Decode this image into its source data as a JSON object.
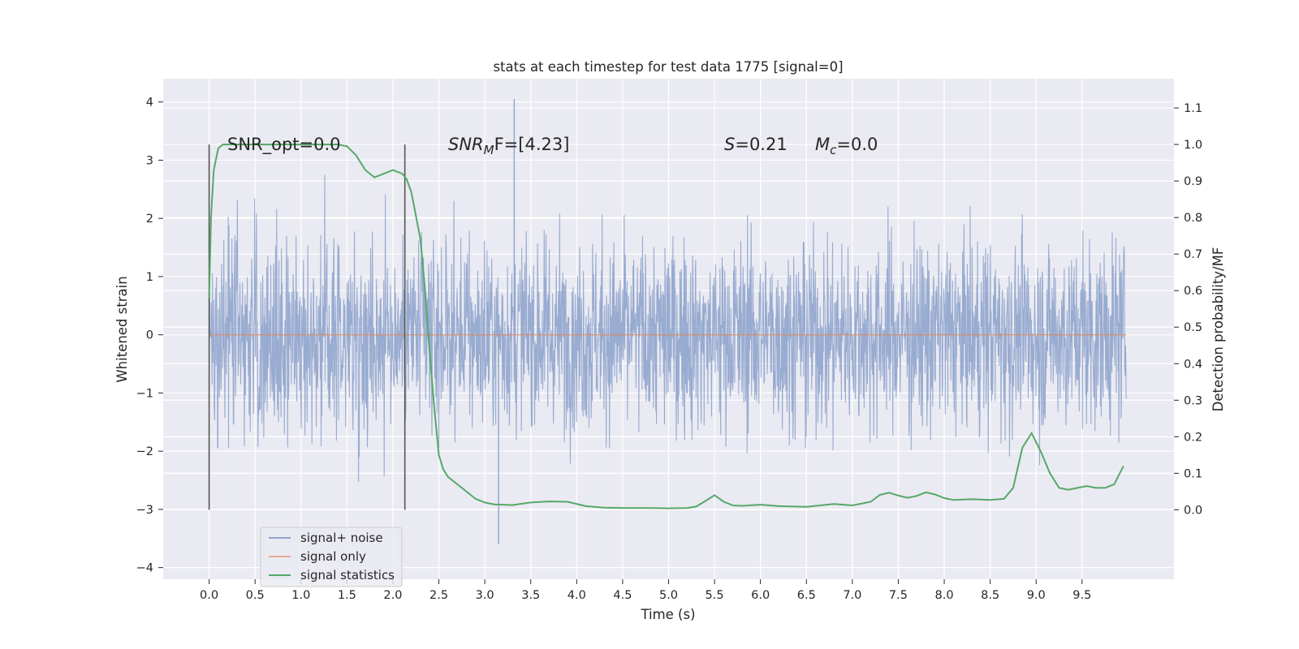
{
  "chart_data": {
    "type": "line",
    "title": "stats at each timestep for test data 1775 [signal=0]",
    "xlabel": "Time (s)",
    "ylabel": "Whitened strain",
    "y2label": "Detection probability/MF",
    "xlim": [
      -0.5,
      10.5
    ],
    "ylim": [
      -4.2,
      4.4
    ],
    "y2lim": [
      -0.19,
      1.18
    ],
    "x_ticks": [
      "0.0",
      "0.5",
      "1.0",
      "1.5",
      "2.0",
      "2.5",
      "3.0",
      "3.5",
      "4.0",
      "4.5",
      "5.0",
      "5.5",
      "6.0",
      "6.5",
      "7.0",
      "7.5",
      "8.0",
      "8.5",
      "9.0",
      "9.5"
    ],
    "x_tick_values": [
      0.0,
      0.5,
      1.0,
      1.5,
      2.0,
      2.5,
      3.0,
      3.5,
      4.0,
      4.5,
      5.0,
      5.5,
      6.0,
      6.5,
      7.0,
      7.5,
      8.0,
      8.5,
      9.0,
      9.5
    ],
    "y_ticks": [
      4,
      3,
      2,
      1,
      0,
      -1,
      -2,
      -3,
      -4
    ],
    "y_tick_labels": [
      "4",
      "3",
      "2",
      "1",
      "0",
      "−1",
      "−2",
      "−3",
      "−4"
    ],
    "y2_ticks": [
      "1.1",
      "1.0",
      "0.9",
      "0.8",
      "0.7",
      "0.6",
      "0.5",
      "0.4",
      "0.3",
      "0.2",
      "0.1",
      "0.0"
    ],
    "y2_tick_values": [
      1.1,
      1.0,
      0.9,
      0.8,
      0.7,
      0.6,
      0.5,
      0.4,
      0.3,
      0.2,
      0.1,
      0.0
    ],
    "grid": true,
    "legend_position": "lower-left",
    "annotations": {
      "snr_opt": "SNR_opt=0.0",
      "snr_mf_main": "SNR",
      "snr_mf_sub": "M",
      "snr_mf_rest": "F=[4.23]",
      "s_main": "S",
      "s_rest": "=0.21",
      "mc_main": "M",
      "mc_sub": "c",
      "mc_rest": "=0.0"
    },
    "vertical_markers": [
      0.0,
      2.13
    ],
    "series": [
      {
        "name": "signal+ noise",
        "color": "#8fa4cc",
        "x_range": [
          0.0,
          9.98
        ],
        "y_range_typical": [
          -2.6,
          3.0
        ],
        "y_extremes": [
          4.05,
          -3.6
        ]
      },
      {
        "name": "signal only",
        "color": "#dd8452",
        "x": [
          0.0,
          9.98
        ],
        "values": [
          0.0,
          0.0
        ]
      },
      {
        "name": "signal statistics",
        "color": "#55a868",
        "axis": "right",
        "x": [
          0.0,
          0.02,
          0.05,
          0.1,
          0.15,
          0.2,
          0.3,
          0.5,
          0.8,
          1.0,
          1.2,
          1.4,
          1.5,
          1.6,
          1.7,
          1.8,
          1.9,
          2.0,
          2.1,
          2.15,
          2.2,
          2.3,
          2.35,
          2.4,
          2.45,
          2.5,
          2.55,
          2.6,
          2.7,
          2.8,
          2.9,
          3.0,
          3.1,
          3.3,
          3.5,
          3.7,
          3.9,
          4.1,
          4.3,
          4.5,
          4.8,
          5.0,
          5.2,
          5.3,
          5.4,
          5.5,
          5.6,
          5.7,
          5.8,
          6.0,
          6.2,
          6.5,
          6.8,
          7.0,
          7.2,
          7.3,
          7.4,
          7.5,
          7.6,
          7.7,
          7.8,
          7.9,
          8.0,
          8.1,
          8.3,
          8.5,
          8.65,
          8.75,
          8.85,
          8.95,
          9.05,
          9.15,
          9.25,
          9.35,
          9.45,
          9.55,
          9.65,
          9.75,
          9.85,
          9.95
        ],
        "values": [
          0.58,
          0.8,
          0.93,
          0.99,
          1.0,
          1.0,
          1.0,
          1.0,
          1.0,
          1.0,
          1.0,
          1.0,
          0.995,
          0.97,
          0.93,
          0.91,
          0.92,
          0.93,
          0.92,
          0.905,
          0.87,
          0.74,
          0.6,
          0.43,
          0.28,
          0.15,
          0.11,
          0.09,
          0.07,
          0.05,
          0.03,
          0.02,
          0.015,
          0.013,
          0.02,
          0.023,
          0.022,
          0.01,
          0.006,
          0.005,
          0.005,
          0.004,
          0.005,
          0.009,
          0.024,
          0.04,
          0.022,
          0.012,
          0.011,
          0.014,
          0.01,
          0.008,
          0.016,
          0.012,
          0.022,
          0.041,
          0.047,
          0.039,
          0.033,
          0.038,
          0.048,
          0.042,
          0.032,
          0.027,
          0.029,
          0.027,
          0.03,
          0.06,
          0.17,
          0.21,
          0.16,
          0.1,
          0.06,
          0.055,
          0.06,
          0.065,
          0.06,
          0.06,
          0.07,
          0.12
        ]
      }
    ]
  }
}
